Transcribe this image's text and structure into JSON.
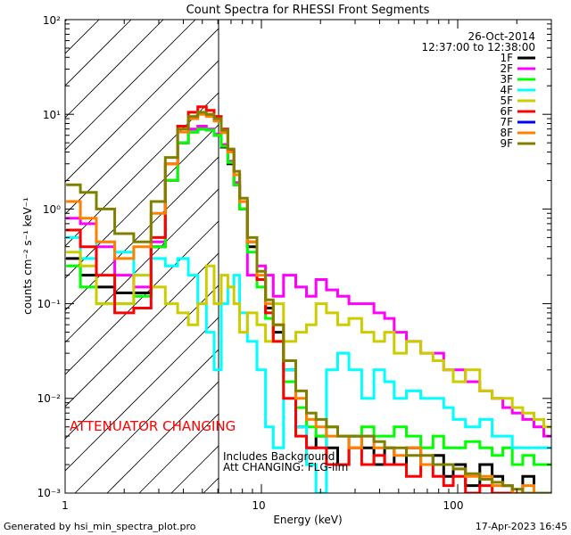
{
  "chart_data": {
    "type": "line",
    "title": "Count Spectra for RHESSI Front Segments",
    "xlabel": "Energy (keV)",
    "ylabel": "counts cm⁻² s⁻¹ keV⁻¹",
    "xscale": "log",
    "yscale": "log",
    "xlim": [
      1,
      300
    ],
    "ylim": [
      0.001,
      100
    ],
    "x_tick_labels": [
      "1",
      "10",
      "100"
    ],
    "y_tick_labels": [
      "10⁻³",
      "10⁻²",
      "10⁻¹",
      "10⁰",
      "10¹",
      "10²"
    ],
    "date": "26-Oct-2014",
    "time_range": "12:37:00 to 12:38:00",
    "attenuator_label": "ATTENUATOR CHANGING",
    "attenuator_boundary_kev": 6,
    "note_lines": [
      "Includes Background",
      "Att CHANGING: FLG-lim"
    ],
    "footer_left": "Generated by hsi_min_spectra_plot.pro",
    "footer_right": "17-Apr-2023 16:45",
    "energies": [
      1.1,
      1.3,
      1.6,
      2.0,
      2.5,
      3.0,
      3.5,
      4.0,
      4.5,
      5.0,
      5.5,
      6.0,
      6.5,
      7.0,
      7.5,
      8.0,
      9.0,
      10,
      11,
      12,
      14,
      16,
      18,
      20,
      23,
      26,
      30,
      35,
      40,
      45,
      50,
      60,
      70,
      80,
      90,
      100,
      120,
      140,
      160,
      180,
      200,
      230,
      260,
      290
    ],
    "series": [
      {
        "name": "1F",
        "color": "#000000",
        "values": [
          0.3,
          0.2,
          0.15,
          0.13,
          0.13,
          0.4,
          2.0,
          5.0,
          6.5,
          7.0,
          6.8,
          6.0,
          4.5,
          3.0,
          1.8,
          1.0,
          0.4,
          0.18,
          0.09,
          0.05,
          0.02,
          0.005,
          0.003,
          0.004,
          0.003,
          0.002,
          0.004,
          0.003,
          0.002,
          0.003,
          0.002,
          0.003,
          0.002,
          0.0025,
          0.0015,
          0.002,
          0.0012,
          0.002,
          0.0015,
          0.0012,
          0.001,
          0.0015,
          0.001,
          0.001
        ]
      },
      {
        "name": "2F",
        "color": "#ff00ff",
        "values": [
          0.8,
          0.7,
          0.4,
          0.2,
          0.15,
          0.45,
          2.0,
          5.0,
          7.0,
          7.5,
          7.0,
          6.2,
          4.8,
          3.2,
          1.9,
          1.0,
          0.2,
          0.25,
          0.2,
          0.12,
          0.2,
          0.15,
          0.12,
          0.18,
          0.14,
          0.12,
          0.1,
          0.1,
          0.08,
          0.07,
          0.05,
          0.04,
          0.03,
          0.03,
          0.02,
          0.02,
          0.015,
          0.012,
          0.01,
          0.008,
          0.007,
          0.006,
          0.005,
          0.004
        ]
      },
      {
        "name": "3F",
        "color": "#00ff00",
        "values": [
          0.25,
          0.15,
          0.1,
          0.1,
          0.12,
          0.4,
          2.0,
          5.0,
          6.5,
          7.0,
          6.8,
          6.0,
          4.6,
          3.1,
          1.8,
          1.0,
          0.35,
          0.15,
          0.07,
          0.04,
          0.015,
          0.008,
          0.005,
          0.004,
          0.005,
          0.004,
          0.004,
          0.005,
          0.004,
          0.004,
          0.005,
          0.004,
          0.003,
          0.004,
          0.003,
          0.003,
          0.0035,
          0.003,
          0.0025,
          0.003,
          0.002,
          0.0025,
          0.002,
          0.002
        ]
      },
      {
        "name": "4F",
        "color": "#00ffff",
        "values": [
          0.5,
          0.3,
          0.45,
          0.35,
          0.2,
          0.3,
          0.25,
          0.3,
          0.2,
          0.1,
          0.05,
          0.02,
          0.1,
          0.15,
          0.2,
          0.08,
          0.04,
          0.02,
          0.005,
          0.003,
          0.02,
          0.005,
          0.002,
          0.001,
          0.02,
          0.03,
          0.02,
          0.01,
          0.02,
          0.015,
          0.01,
          0.012,
          0.01,
          0.01,
          0.008,
          0.006,
          0.005,
          0.006,
          0.004,
          0.004,
          0.003,
          0.003,
          0.003,
          0.003
        ]
      },
      {
        "name": "5F",
        "color": "#cccc00",
        "values": [
          0.35,
          0.25,
          0.1,
          0.1,
          0.2,
          0.15,
          0.1,
          0.08,
          0.06,
          0.1,
          0.25,
          0.1,
          0.2,
          0.15,
          0.1,
          0.05,
          0.08,
          0.06,
          0.04,
          0.1,
          0.04,
          0.05,
          0.06,
          0.1,
          0.08,
          0.06,
          0.07,
          0.05,
          0.04,
          0.05,
          0.03,
          0.04,
          0.03,
          0.025,
          0.02,
          0.015,
          0.02,
          0.012,
          0.01,
          0.01,
          0.008,
          0.007,
          0.006,
          0.005
        ]
      },
      {
        "name": "6F",
        "color": "#ff0000",
        "values": [
          0.6,
          0.4,
          0.2,
          0.08,
          0.09,
          0.5,
          3.0,
          7.5,
          10.5,
          12.0,
          11.0,
          9.5,
          7.0,
          4.2,
          2.3,
          1.2,
          0.45,
          0.18,
          0.08,
          0.04,
          0.01,
          0.004,
          0.003,
          0.003,
          0.002,
          0.002,
          0.003,
          0.002,
          0.0025,
          0.002,
          0.002,
          0.0015,
          0.002,
          0.0015,
          0.0012,
          0.0015,
          0.001,
          0.0012,
          0.001,
          0.001,
          0.001,
          0.001,
          0.001,
          0.001
        ]
      },
      {
        "name": "7F",
        "color": "#0000ff",
        "values": []
      },
      {
        "name": "8F",
        "color": "#ff8000",
        "values": [
          1.2,
          0.8,
          0.45,
          0.3,
          0.4,
          0.9,
          3.0,
          6.5,
          9.0,
          10.0,
          9.5,
          8.5,
          6.4,
          4.0,
          2.3,
          1.2,
          0.45,
          0.2,
          0.1,
          0.06,
          0.025,
          0.01,
          0.006,
          0.005,
          0.004,
          0.004,
          0.003,
          0.004,
          0.003,
          0.003,
          0.0025,
          0.003,
          0.002,
          0.002,
          0.002,
          0.0018,
          0.0015,
          0.0015,
          0.0012,
          0.0012,
          0.001,
          0.0012,
          0.001,
          0.001
        ]
      },
      {
        "name": "9F",
        "color": "#808000",
        "values": [
          1.8,
          1.5,
          1.0,
          0.55,
          0.45,
          1.2,
          3.5,
          7.0,
          9.5,
          10.5,
          10.0,
          9.0,
          6.8,
          4.3,
          2.5,
          1.3,
          0.5,
          0.22,
          0.11,
          0.06,
          0.025,
          0.012,
          0.007,
          0.006,
          0.005,
          0.004,
          0.004,
          0.004,
          0.0035,
          0.003,
          0.003,
          0.0025,
          0.0025,
          0.002,
          0.002,
          0.0018,
          0.0016,
          0.0014,
          0.0013,
          0.0012,
          0.0011,
          0.001,
          0.001,
          0.001
        ]
      }
    ]
  }
}
